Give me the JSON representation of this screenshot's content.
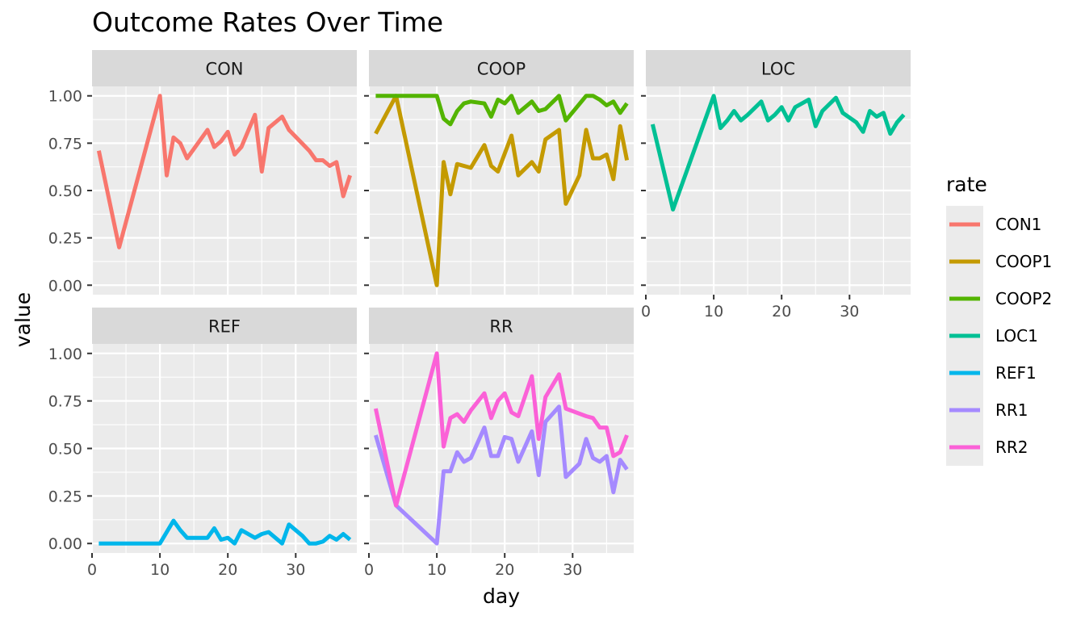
{
  "chart_data": {
    "type": "line",
    "title": "Outcome Rates Over Time",
    "xlabel": "day",
    "ylabel": "value",
    "xlim": [
      0,
      39
    ],
    "ylim": [
      -0.05,
      1.05
    ],
    "x_ticks": [
      0,
      10,
      20,
      30
    ],
    "y_ticks": [
      0,
      0.25,
      0.5,
      0.75,
      1.0
    ],
    "y_tick_labels": [
      "0.00",
      "0.25",
      "0.50",
      "0.75",
      "1.00"
    ],
    "grid": true,
    "facet_by": "panel",
    "legend": {
      "title": "rate",
      "position": "right"
    },
    "panels": [
      "CON",
      "COOP",
      "LOC",
      "REF",
      "RR"
    ],
    "series": [
      {
        "name": "CON1",
        "panel": "CON",
        "color": "#F8766D",
        "x": [
          1,
          4,
          10,
          11,
          12,
          13,
          14,
          15,
          17,
          18,
          19,
          20,
          21,
          22,
          24,
          25,
          26,
          28,
          29,
          32,
          33,
          34,
          35,
          36,
          37,
          38
        ],
        "y": [
          0.71,
          0.2,
          1.0,
          0.58,
          0.78,
          0.75,
          0.67,
          0.72,
          0.82,
          0.73,
          0.76,
          0.81,
          0.69,
          0.73,
          0.9,
          0.6,
          0.83,
          0.89,
          0.82,
          0.71,
          0.66,
          0.66,
          0.63,
          0.65,
          0.47,
          0.58
        ]
      },
      {
        "name": "COOP1",
        "panel": "COOP",
        "color": "#C49A00",
        "x": [
          1,
          4,
          10,
          11,
          12,
          13,
          15,
          17,
          18,
          19,
          21,
          22,
          24,
          25,
          26,
          28,
          29,
          31,
          32,
          33,
          34,
          35,
          36,
          37,
          38
        ],
        "y": [
          0.8,
          1.0,
          0.0,
          0.65,
          0.48,
          0.64,
          0.62,
          0.74,
          0.63,
          0.6,
          0.79,
          0.58,
          0.65,
          0.6,
          0.77,
          0.82,
          0.43,
          0.58,
          0.82,
          0.67,
          0.67,
          0.69,
          0.56,
          0.84,
          0.66
        ]
      },
      {
        "name": "COOP2",
        "panel": "COOP",
        "color": "#53B400",
        "x": [
          1,
          10,
          11,
          12,
          13,
          14,
          15,
          17,
          18,
          19,
          20,
          21,
          22,
          24,
          25,
          26,
          28,
          29,
          32,
          33,
          34,
          35,
          36,
          37,
          38
        ],
        "y": [
          1.0,
          1.0,
          0.88,
          0.85,
          0.92,
          0.96,
          0.97,
          0.96,
          0.89,
          0.98,
          0.96,
          1.0,
          0.91,
          0.97,
          0.92,
          0.93,
          1.0,
          0.87,
          1.0,
          1.0,
          0.98,
          0.95,
          0.97,
          0.91,
          0.96
        ]
      },
      {
        "name": "LOC1",
        "panel": "LOC",
        "color": "#00C094",
        "x": [
          1,
          4,
          10,
          11,
          12,
          13,
          14,
          15,
          17,
          18,
          19,
          20,
          21,
          22,
          24,
          25,
          26,
          28,
          29,
          31,
          32,
          33,
          34,
          35,
          36,
          37,
          38
        ],
        "y": [
          0.85,
          0.4,
          1.0,
          0.83,
          0.87,
          0.92,
          0.87,
          0.9,
          0.97,
          0.87,
          0.9,
          0.94,
          0.87,
          0.94,
          0.98,
          0.84,
          0.92,
          0.99,
          0.91,
          0.86,
          0.81,
          0.92,
          0.89,
          0.91,
          0.8,
          0.86,
          0.9
        ]
      },
      {
        "name": "REF1",
        "panel": "REF",
        "color": "#00B6EB",
        "x": [
          1,
          4,
          10,
          11,
          12,
          13,
          14,
          15,
          17,
          18,
          19,
          20,
          21,
          22,
          24,
          25,
          26,
          28,
          29,
          31,
          32,
          33,
          34,
          35,
          36,
          37,
          38
        ],
        "y": [
          0.0,
          0.0,
          0.0,
          0.06,
          0.12,
          0.07,
          0.03,
          0.03,
          0.03,
          0.08,
          0.02,
          0.03,
          0.0,
          0.07,
          0.03,
          0.05,
          0.06,
          0.0,
          0.1,
          0.04,
          0.0,
          0.0,
          0.01,
          0.04,
          0.02,
          0.05,
          0.02
        ]
      },
      {
        "name": "RR1",
        "panel": "RR",
        "color": "#A58AFF",
        "x": [
          1,
          4,
          10,
          11,
          12,
          13,
          14,
          15,
          17,
          18,
          19,
          20,
          21,
          22,
          24,
          25,
          26,
          28,
          29,
          31,
          32,
          33,
          34,
          35,
          36,
          37,
          38
        ],
        "y": [
          0.57,
          0.2,
          0.0,
          0.38,
          0.38,
          0.48,
          0.43,
          0.45,
          0.61,
          0.46,
          0.46,
          0.56,
          0.55,
          0.43,
          0.59,
          0.36,
          0.64,
          0.72,
          0.35,
          0.42,
          0.55,
          0.45,
          0.43,
          0.46,
          0.27,
          0.44,
          0.39
        ]
      },
      {
        "name": "RR2",
        "panel": "RR",
        "color": "#FB61D7",
        "x": [
          1,
          4,
          10,
          11,
          12,
          13,
          14,
          15,
          17,
          18,
          19,
          20,
          21,
          22,
          24,
          25,
          26,
          28,
          29,
          32,
          33,
          34,
          35,
          36,
          37,
          38
        ],
        "y": [
          0.71,
          0.2,
          1.0,
          0.51,
          0.66,
          0.68,
          0.64,
          0.7,
          0.79,
          0.66,
          0.75,
          0.79,
          0.69,
          0.67,
          0.88,
          0.55,
          0.77,
          0.89,
          0.71,
          0.67,
          0.66,
          0.61,
          0.61,
          0.46,
          0.48,
          0.57
        ]
      }
    ]
  }
}
